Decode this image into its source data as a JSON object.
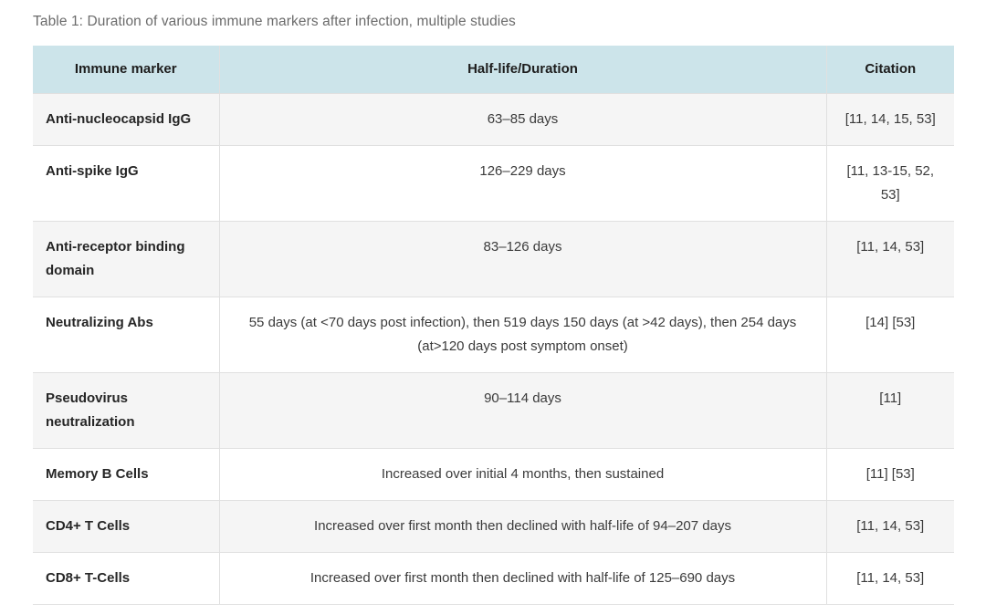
{
  "page": {
    "caption": "Table 1: Duration of various immune markers after infection, multiple studies"
  },
  "table": {
    "columns": [
      "Immune marker",
      "Half-life/Duration",
      "Citation"
    ],
    "rows": [
      {
        "marker": "Anti-nucleocapsid IgG",
        "duration": "63–85 days",
        "citation": "[11, 14, 15, 53]"
      },
      {
        "marker": "Anti-spike IgG",
        "duration": "126–229 days",
        "citation": "[11, 13-15, 52, 53]"
      },
      {
        "marker": "Anti-receptor binding domain",
        "duration": "83–126 days",
        "citation": "[11, 14, 53]"
      },
      {
        "marker": "Neutralizing Abs",
        "duration": "55 days (at <70 days post infection), then 519 days 150 days (at >42 days), then 254 days (at>120 days post symptom onset)",
        "citation": "[14] [53]"
      },
      {
        "marker": "Pseudovirus neutralization",
        "duration": "90–114 days",
        "citation": "[11]"
      },
      {
        "marker": "Memory B Cells",
        "duration": "Increased over initial 4 months, then sustained",
        "citation": "[11] [53]"
      },
      {
        "marker": "CD4+ T Cells",
        "duration": "Increased over first month then declined with half-life of 94–207 days",
        "citation": "[11, 14, 53]"
      },
      {
        "marker": "CD8+ T-Cells",
        "duration": "Increased over first month then declined with half-life of 125–690 days",
        "citation": "[11, 14, 53]"
      }
    ],
    "colors": {
      "header_bg": "#cce4ea",
      "row_alt_bg": "#f5f5f5",
      "border": "#e0e0e0"
    }
  }
}
